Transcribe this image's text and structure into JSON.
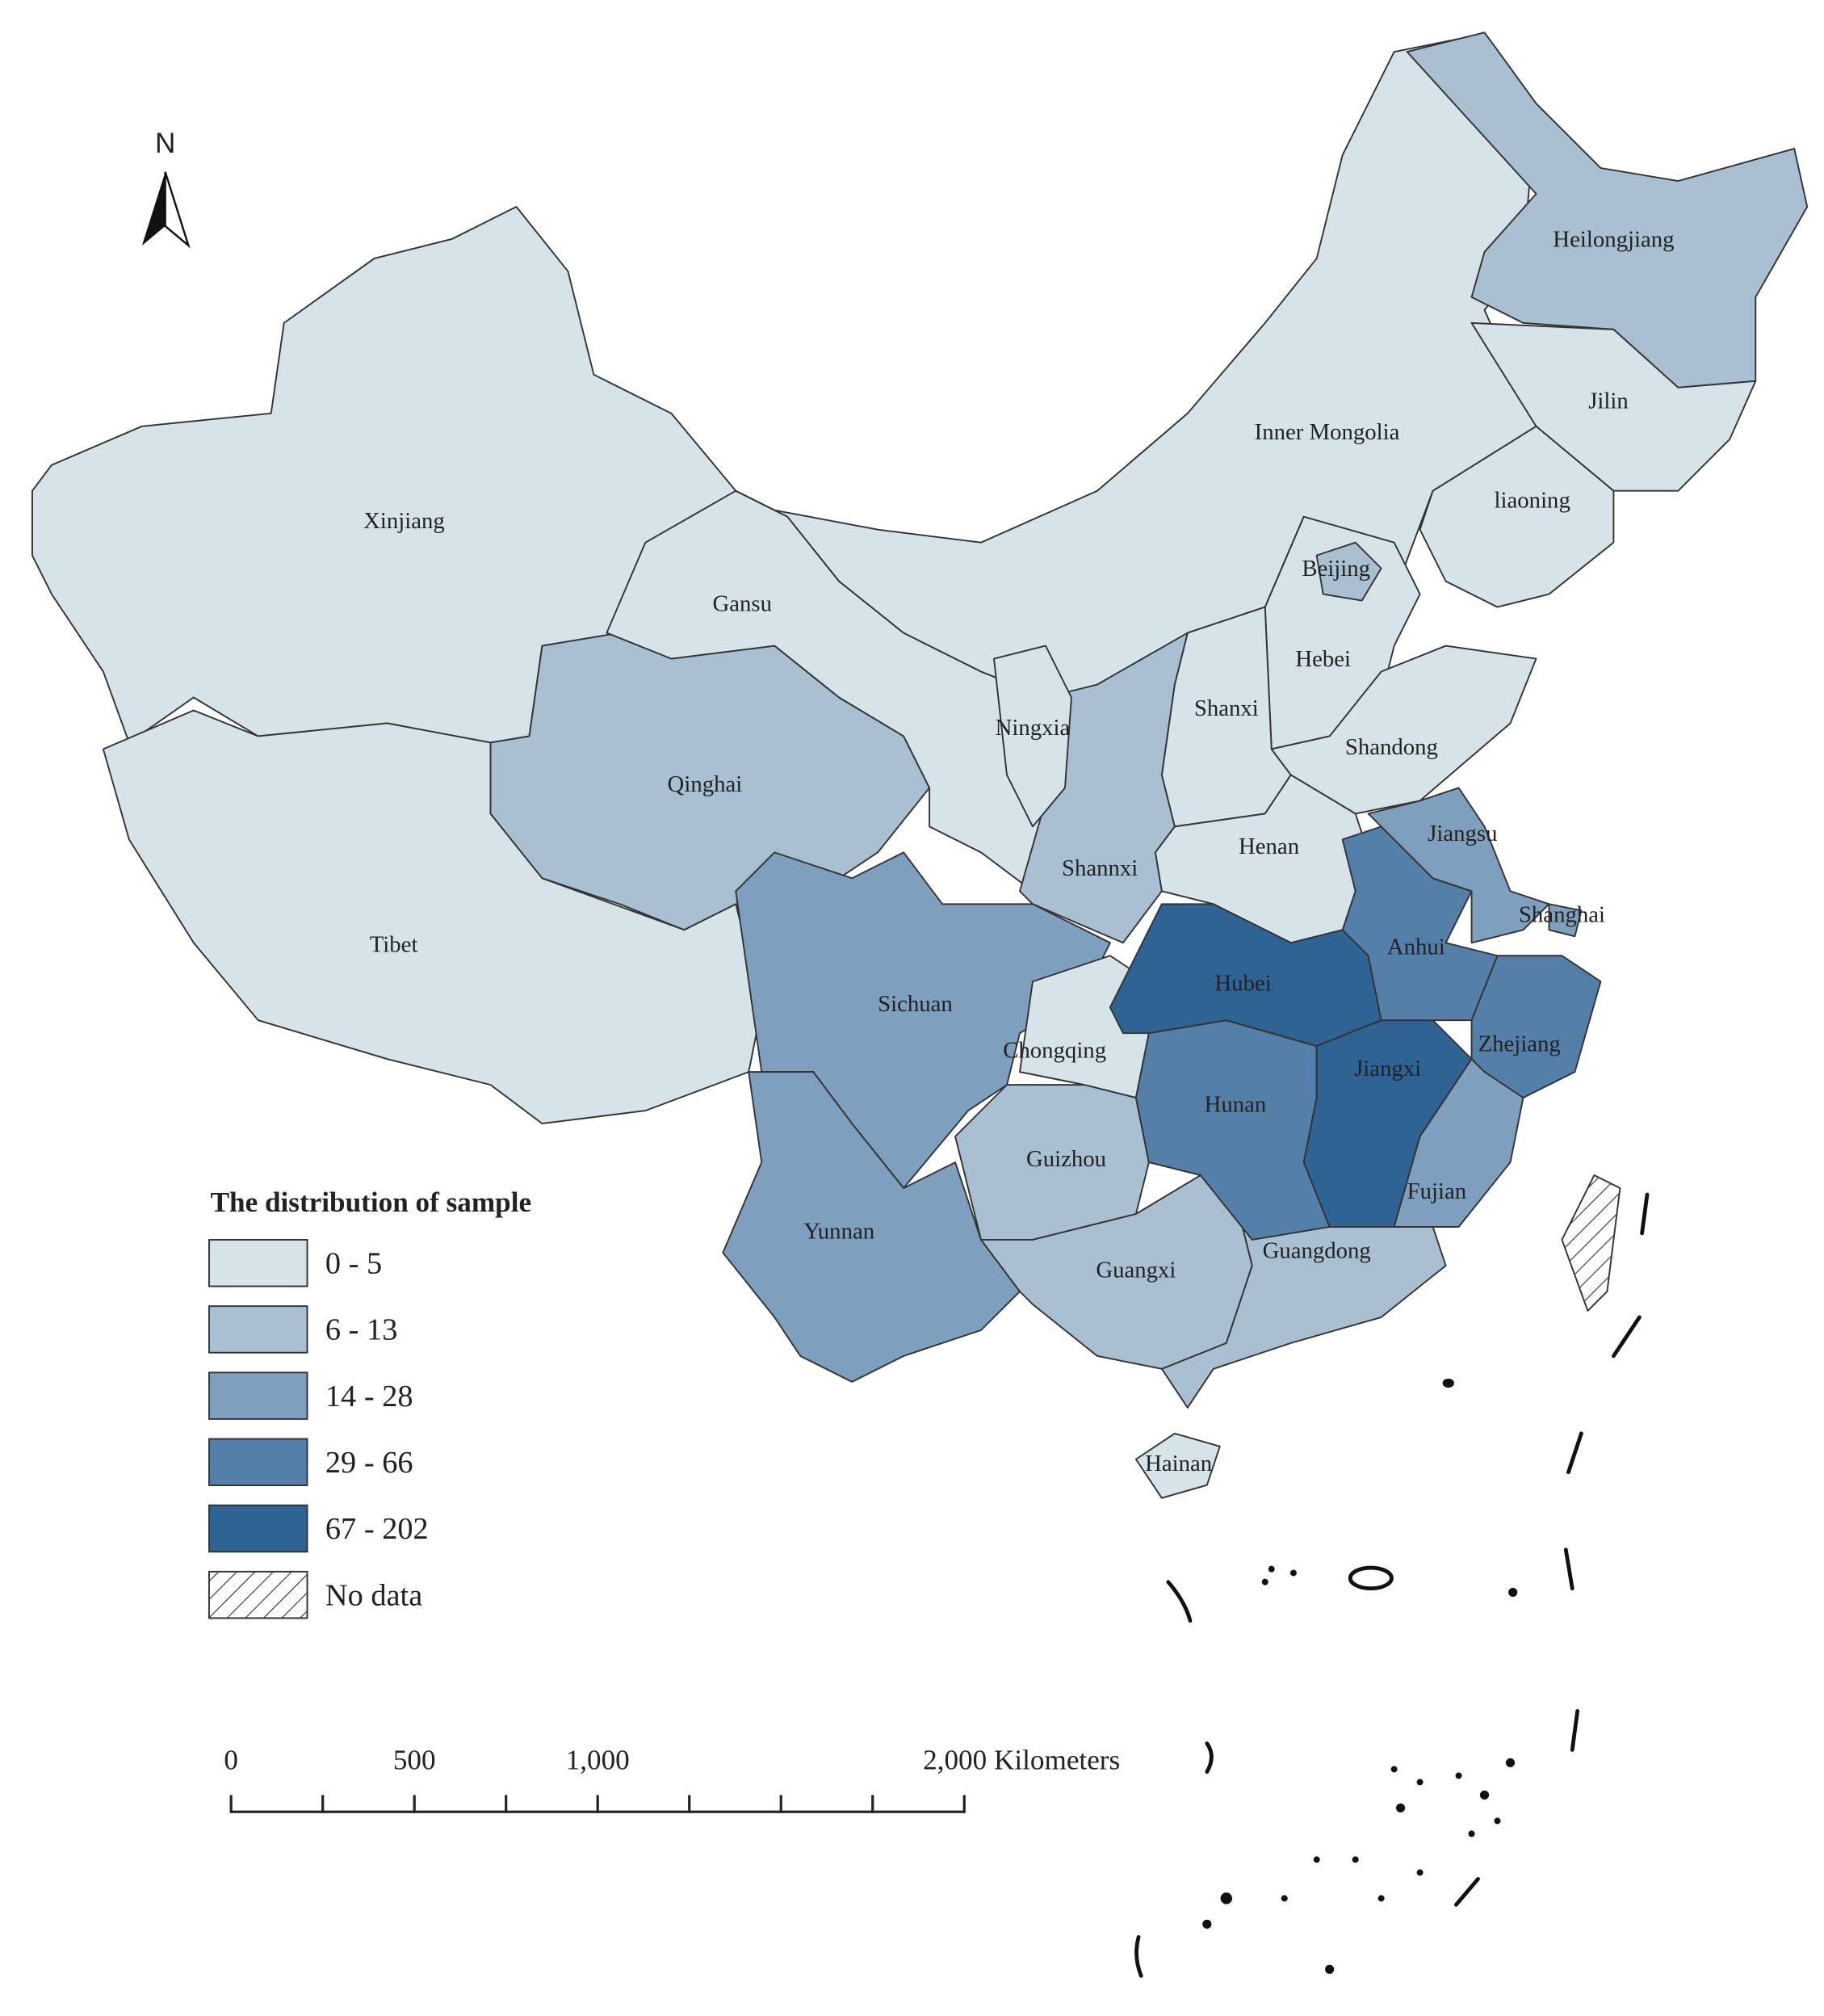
{
  "north": "N",
  "legend": {
    "title": "The distribution of sample",
    "classes": [
      {
        "label": "0 - 5",
        "color": "#d6e4ea"
      },
      {
        "label": "6 - 13",
        "color": "#a9c0d2"
      },
      {
        "label": "14 - 28",
        "color": "#7f9fbe"
      },
      {
        "label": "29 - 66",
        "color": "#537fa8"
      },
      {
        "label": "67 - 202",
        "color": "#2e6393"
      }
    ],
    "no_data": "No data"
  },
  "provinces": [
    {
      "name": "Xinjiang",
      "color": "#d6e4ea"
    },
    {
      "name": "Tibet",
      "color": "#d6e4ea"
    },
    {
      "name": "Qinghai",
      "color": "#a9c0d2"
    },
    {
      "name": "Gansu",
      "color": "#d6e4ea"
    },
    {
      "name": "Inner Mongolia",
      "color": "#d6e4ea"
    },
    {
      "name": "Heilongjiang",
      "color": "#a9c0d2"
    },
    {
      "name": "Jilin",
      "color": "#d6e4ea"
    },
    {
      "name": "liaoning",
      "color": "#d6e4ea"
    },
    {
      "name": "Hebei",
      "color": "#d6e4ea"
    },
    {
      "name": "Beijing",
      "color": "#a9c0d2"
    },
    {
      "name": "Shanxi",
      "color": "#d6e4ea"
    },
    {
      "name": "Shandong",
      "color": "#d6e4ea"
    },
    {
      "name": "Henan",
      "color": "#d6e4ea"
    },
    {
      "name": "Shannxi",
      "color": "#a9c0d2"
    },
    {
      "name": "Ningxia",
      "color": "#d6e4ea"
    },
    {
      "name": "Sichuan",
      "color": "#7f9fbe"
    },
    {
      "name": "Chongqing",
      "color": "#d6e4ea"
    },
    {
      "name": "Yunnan",
      "color": "#7f9fbe"
    },
    {
      "name": "Guizhou",
      "color": "#a9c0d2"
    },
    {
      "name": "Guangxi",
      "color": "#a9c0d2"
    },
    {
      "name": "Guangdong",
      "color": "#a9c0d2"
    },
    {
      "name": "Hainan",
      "color": "#d6e4ea"
    },
    {
      "name": "Hunan",
      "color": "#537fa8"
    },
    {
      "name": "Hubei",
      "color": "#2e6393"
    },
    {
      "name": "Jiangxi",
      "color": "#2e6393"
    },
    {
      "name": "Anhui",
      "color": "#537fa8"
    },
    {
      "name": "Jiangsu",
      "color": "#7f9fbe"
    },
    {
      "name": "Shanghai",
      "color": "#7f9fbe"
    },
    {
      "name": "Zhejiang",
      "color": "#537fa8"
    },
    {
      "name": "Fujian",
      "color": "#7f9fbe"
    }
  ],
  "scale_bar": {
    "labels": [
      "0",
      "500",
      "1,000",
      "2,000 Kilometers"
    ]
  }
}
